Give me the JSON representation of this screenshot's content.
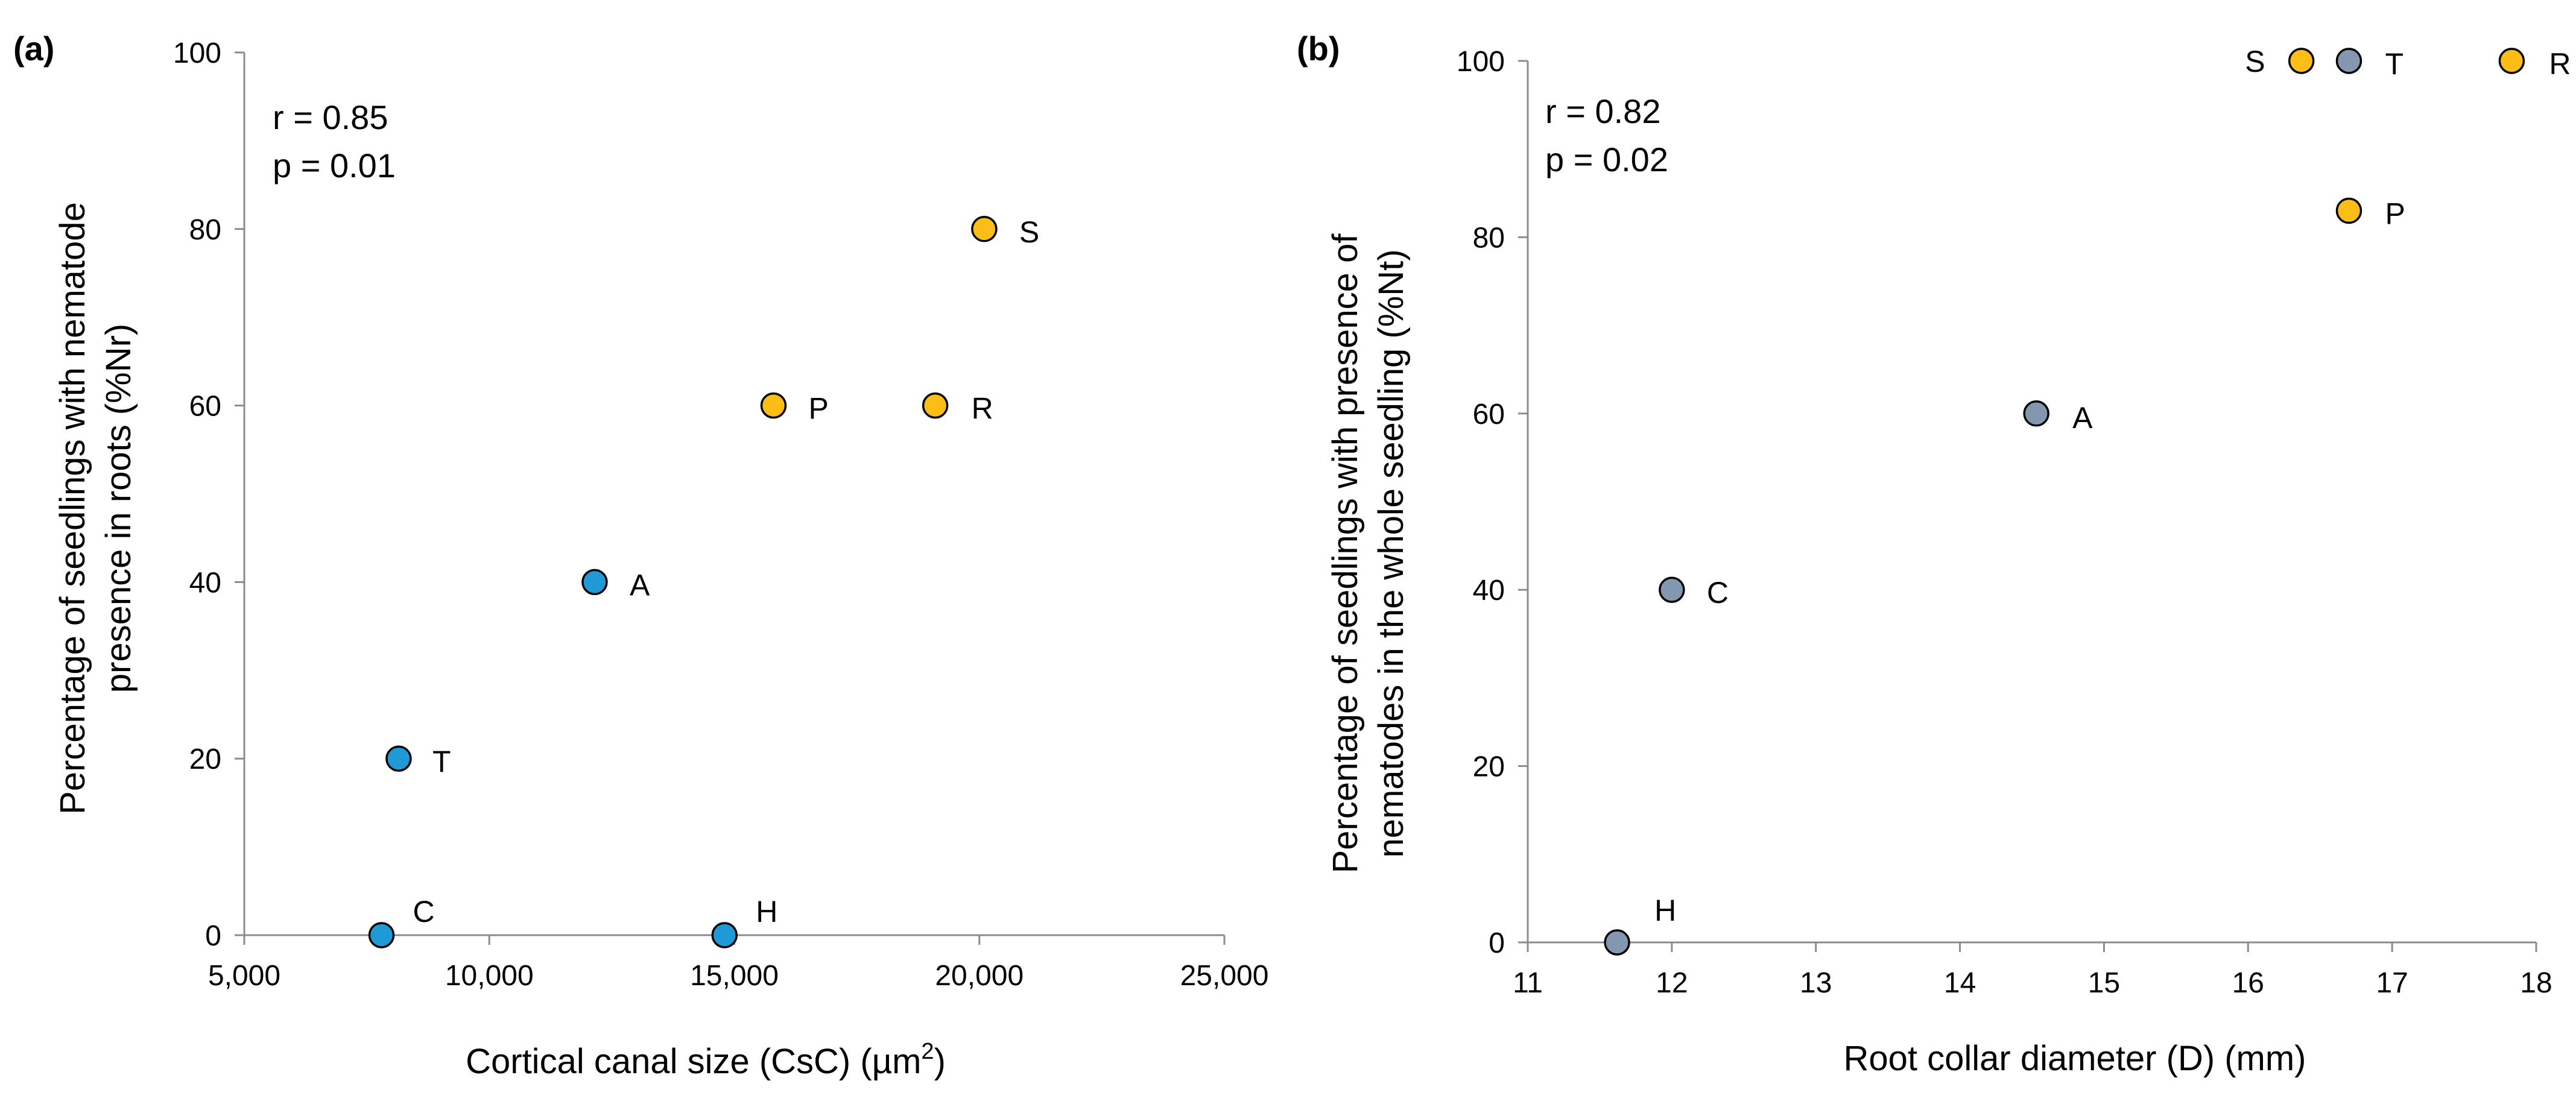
{
  "chart_data": [
    {
      "panel": "(a)",
      "type": "scatter",
      "title": "",
      "xlabel": "Cortical canal size (CsC) (µm",
      "xlabel_sup": "2",
      "xlabel_end": ")",
      "ylabel_lines": [
        "Percentage of seedlings with nematode",
        "presence in roots (%Nr)"
      ],
      "xlim": [
        5000,
        25000
      ],
      "ylim": [
        0,
        100
      ],
      "x_ticks": [
        5000,
        10000,
        15000,
        20000,
        25000
      ],
      "x_tick_labels": [
        "5,000",
        "10,000",
        "15,000",
        "20,000",
        "25,000"
      ],
      "y_ticks": [
        0,
        20,
        40,
        60,
        80,
        100
      ],
      "y_tick_labels": [
        "0",
        "20",
        "40",
        "60",
        "80",
        "100"
      ],
      "stats": [
        "r = 0.85",
        "p = 0.01"
      ],
      "points": [
        {
          "label": "C",
          "x": 7800,
          "y": 0,
          "color": "#1f9ad6"
        },
        {
          "label": "H",
          "x": 14800,
          "y": 0,
          "color": "#1f9ad6"
        },
        {
          "label": "T",
          "x": 8150,
          "y": 20,
          "color": "#1f9ad6"
        },
        {
          "label": "A",
          "x": 12150,
          "y": 40,
          "color": "#1f9ad6"
        },
        {
          "label": "P",
          "x": 15800,
          "y": 60,
          "color": "#fbbd16"
        },
        {
          "label": "R",
          "x": 19100,
          "y": 60,
          "color": "#fbbd16"
        },
        {
          "label": "S",
          "x": 20100,
          "y": 80,
          "color": "#fbbd16"
        }
      ]
    },
    {
      "panel": "(b)",
      "type": "scatter",
      "title": "",
      "xlabel": "Root collar diameter (D) (mm)",
      "ylabel_lines": [
        "Percentage of seedlings with presence of",
        "nematodes in the whole seedling (%Nt)"
      ],
      "xlim": [
        11,
        18
      ],
      "ylim": [
        0,
        100
      ],
      "x_ticks": [
        11,
        12,
        13,
        14,
        15,
        16,
        17,
        18
      ],
      "x_tick_labels": [
        "11",
        "12",
        "13",
        "14",
        "15",
        "16",
        "17",
        "18"
      ],
      "y_ticks": [
        0,
        20,
        40,
        60,
        80,
        100
      ],
      "y_tick_labels": [
        "0",
        "20",
        "40",
        "60",
        "80",
        "100"
      ],
      "stats": [
        "r = 0.82",
        "p = 0.02"
      ],
      "points": [
        {
          "label": "H",
          "x": 11.62,
          "y": 0,
          "color": "#8497b0"
        },
        {
          "label": "C",
          "x": 12.0,
          "y": 40,
          "color": "#8497b0"
        },
        {
          "label": "A",
          "x": 14.53,
          "y": 60,
          "color": "#8497b0"
        },
        {
          "label": "P",
          "x": 16.7,
          "y": 83,
          "color": "#fbbd16"
        },
        {
          "label": "S",
          "x": 16.37,
          "y": 100,
          "color": "#fbbd16"
        },
        {
          "label": "T",
          "x": 16.7,
          "y": 100,
          "color": "#8497b0"
        },
        {
          "label": "R",
          "x": 17.83,
          "y": 100,
          "color": "#fbbd16"
        }
      ]
    }
  ]
}
